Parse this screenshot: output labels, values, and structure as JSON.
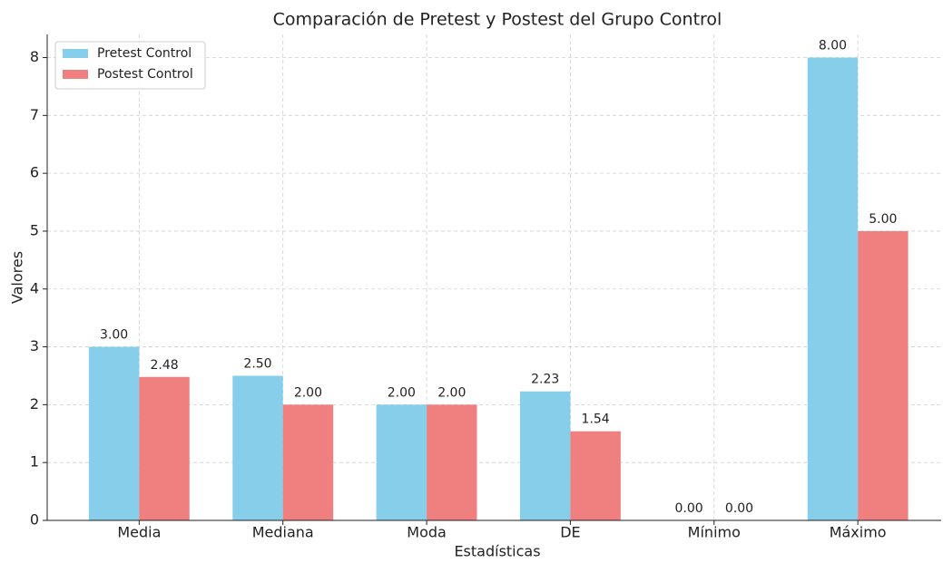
{
  "chart_data": {
    "type": "bar",
    "title": "Comparación de Pretest y Postest del Grupo Control",
    "x_label": "Estadísticas",
    "y_label": "Valores",
    "categories": [
      "Media",
      "Mediana",
      "Moda",
      "DE",
      "Mínimo",
      "Máximo"
    ],
    "series": [
      {
        "name": "Pretest Control",
        "color": "#87ceeb",
        "values": [
          3.0,
          2.5,
          2.0,
          2.23,
          0.0,
          8.0
        ],
        "value_labels": [
          "3.00",
          "2.50",
          "2.00",
          "2.23",
          "0.00",
          "8.00"
        ]
      },
      {
        "name": "Postest Control",
        "color": "#f08080",
        "values": [
          2.48,
          2.0,
          2.0,
          1.54,
          0.0,
          5.0
        ],
        "value_labels": [
          "2.48",
          "2.00",
          "2.00",
          "1.54",
          "0.00",
          "5.00"
        ]
      }
    ],
    "ylim": [
      0,
      8.4
    ],
    "yticks": [
      0,
      1,
      2,
      3,
      4,
      5,
      6,
      7,
      8
    ],
    "grid": true,
    "legend": "upper-left"
  }
}
